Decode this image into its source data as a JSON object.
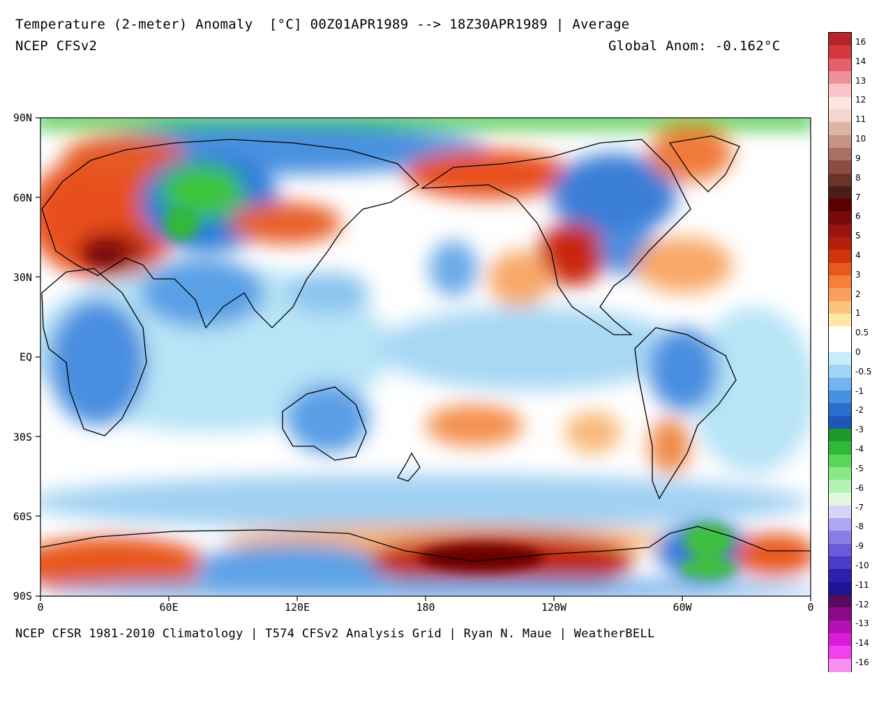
{
  "header": {
    "title": "Temperature (2-meter) Anomaly  [°C] 00Z01APR1989 --> 18Z30APR1989 | Average",
    "model": "NCEP CFSv2",
    "global_anom": "Global Anom: -0.162°C"
  },
  "footer": "NCEP CFSR 1981-2010 Climatology | T574 CFSv2 Analysis Grid | Ryan N. Maue | WeatherBELL",
  "axes": {
    "lat_labels": [
      "90N",
      "60N",
      "30N",
      "EQ",
      "30S",
      "60S",
      "90S"
    ],
    "lon_labels": [
      "0",
      "60E",
      "120E",
      "180",
      "120W",
      "60W",
      "0"
    ]
  },
  "colorbar": {
    "labels": [
      "16",
      "14",
      "13",
      "12",
      "11",
      "10",
      "9",
      "8",
      "7",
      "6",
      "5",
      "4",
      "3",
      "2",
      "1",
      "0.5",
      "0",
      "-0.5",
      "-1",
      "-2",
      "-3",
      "-4",
      "-5",
      "-6",
      "-7",
      "-8",
      "-9",
      "-10",
      "-11",
      "-12",
      "-13",
      "-14",
      "-16"
    ],
    "colors": [
      "#b8232a",
      "#d23a3e",
      "#e4606a",
      "#f0909a",
      "#fac4ca",
      "#fde6e2",
      "#f4d6cc",
      "#dcb4a6",
      "#c69484",
      "#a87062",
      "#8a4e42",
      "#6a3428",
      "#4a1e16",
      "#5a0000",
      "#7a0a0a",
      "#9a1410",
      "#b41e0a",
      "#d2320c",
      "#e85a1c",
      "#f47e3a",
      "#f8a05e",
      "#fcc37e",
      "#fee6a4",
      "#ffffff",
      "#ffffff",
      "#c8ecf8",
      "#a0d4f4",
      "#74b4ee",
      "#4690e0",
      "#2a6ed0",
      "#1d55b8",
      "#1c9a2a",
      "#30b83a",
      "#58d858",
      "#88e888",
      "#b4f2b4",
      "#e0f8e0",
      "#d8d4f8",
      "#b0a8f2",
      "#8a80e4",
      "#6a5cd8",
      "#4a3cc8",
      "#2c20b0",
      "#1c1490",
      "#5a0a5a",
      "#8a0a8a",
      "#b410b4",
      "#d81cd8",
      "#f040f0",
      "#f890f0"
    ]
  }
}
